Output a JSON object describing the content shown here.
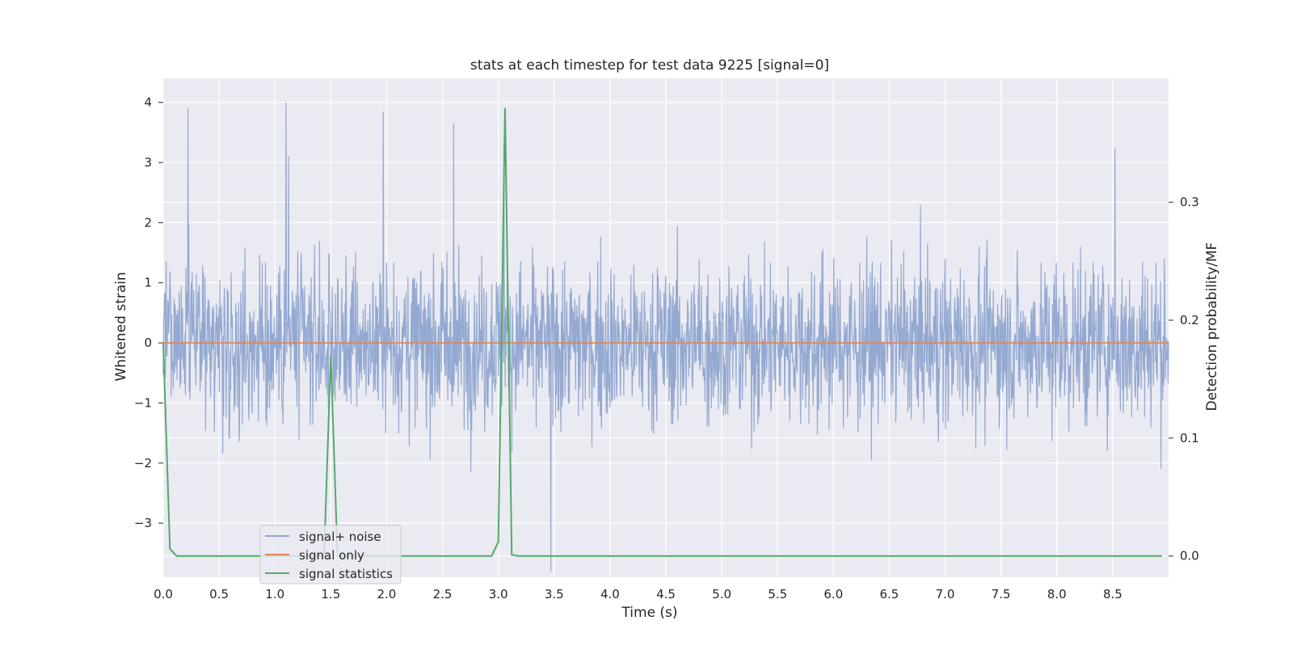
{
  "chart_data": {
    "type": "line",
    "title": "stats at each timestep for test data 9225 [signal=0]",
    "xlabel": "Time (s)",
    "ylabel": "Whitened strain",
    "y2label": "Detection probability/MF",
    "xlim": [
      0.0,
      9.0
    ],
    "ylim": [
      -3.9,
      4.4
    ],
    "y2lim": [
      -0.018,
      0.405
    ],
    "xticks": [
      "0.0",
      "0.5",
      "1.0",
      "1.5",
      "2.0",
      "2.5",
      "3.0",
      "3.5",
      "4.0",
      "4.5",
      "5.0",
      "5.5",
      "6.0",
      "6.5",
      "7.0",
      "7.5",
      "8.0",
      "8.5"
    ],
    "yticks": [
      -3,
      -2,
      -1,
      0,
      1,
      2,
      3,
      4
    ],
    "y2ticks": [
      "0.0",
      "0.1",
      "0.2",
      "0.3"
    ],
    "grid": true,
    "legend_position": "lower-left",
    "colors": {
      "background": "#eaeaf2",
      "grid": "#ffffff",
      "signal_noise": "#8fa5cf",
      "signal_only": "#dd8452",
      "signal_statistics": "#55a868"
    },
    "series": [
      {
        "name": "signal+ noise",
        "axis": "left",
        "description_peaks": {
          "x": [
            0.22,
            1.1,
            1.12,
            1.97,
            2.6,
            3.05,
            3.47,
            8.52
          ],
          "y": [
            3.9,
            4.0,
            3.1,
            3.85,
            3.65,
            3.3,
            -3.8,
            3.25
          ]
        }
      },
      {
        "name": "signal only",
        "axis": "left",
        "x": [
          0.0,
          9.0
        ],
        "y": [
          0.0,
          0.0
        ]
      },
      {
        "name": "signal statistics",
        "axis": "right",
        "x": [
          0.0,
          0.06,
          0.12,
          0.18,
          0.24,
          0.3,
          0.36,
          0.42,
          0.48,
          0.54,
          0.6,
          0.66,
          0.72,
          0.78,
          0.84,
          0.9,
          0.96,
          1.02,
          1.08,
          1.14,
          1.2,
          1.26,
          1.32,
          1.38,
          1.44,
          1.5,
          1.56,
          1.62,
          1.68,
          1.74,
          1.8,
          1.86,
          1.92,
          1.98,
          2.04,
          2.1,
          2.16,
          2.22,
          2.28,
          2.34,
          2.4,
          2.46,
          2.52,
          2.58,
          2.64,
          2.7,
          2.76,
          2.82,
          2.88,
          2.94,
          3.0,
          3.06,
          3.12,
          3.18,
          3.24,
          3.3,
          3.36,
          3.42,
          3.48,
          3.54,
          3.6,
          3.66,
          3.72,
          3.78,
          3.84,
          3.9,
          3.96,
          4.02,
          4.08,
          4.14,
          4.2,
          4.26,
          4.32,
          4.38,
          4.44,
          4.5,
          4.56,
          4.62,
          4.68,
          4.74,
          4.8,
          4.86,
          4.92,
          4.98,
          5.04,
          5.1,
          5.16,
          5.22,
          5.28,
          5.34,
          5.4,
          5.46,
          5.52,
          5.58,
          5.64,
          5.7,
          5.76,
          5.82,
          5.88,
          5.94,
          6.0,
          6.06,
          6.12,
          6.18,
          6.24,
          6.3,
          6.36,
          6.42,
          6.48,
          6.54,
          6.6,
          6.66,
          6.72,
          6.78,
          6.84,
          6.9,
          6.96,
          7.02,
          7.08,
          7.14,
          7.2,
          7.26,
          7.32,
          7.38,
          7.44,
          7.5,
          7.56,
          7.62,
          7.68,
          7.74,
          7.8,
          7.86,
          7.92,
          7.98,
          8.04,
          8.1,
          8.16,
          8.22,
          8.28,
          8.34,
          8.4,
          8.46,
          8.52,
          8.58,
          8.64,
          8.7,
          8.76,
          8.82,
          8.88,
          8.94
        ],
        "y": [
          0.18,
          0.006,
          0.0,
          0.0,
          0.0,
          0.0,
          0.0,
          0.0,
          0.0,
          0.0,
          0.0,
          0.0,
          0.0,
          0.0,
          0.0,
          0.0,
          0.0,
          0.0,
          0.0,
          0.0,
          0.0,
          0.0,
          0.0,
          0.0,
          0.0,
          0.17,
          0.0,
          0.0,
          0.0,
          0.0,
          0.0,
          0.0,
          0.0,
          0.0,
          0.0,
          0.0,
          0.0,
          0.0,
          0.0,
          0.0,
          0.0,
          0.0,
          0.0,
          0.0,
          0.0,
          0.0,
          0.0,
          0.0,
          0.0,
          0.0,
          0.012,
          0.38,
          0.001,
          0.0,
          0.0,
          0.0,
          0.0,
          0.0,
          0.0,
          0.0,
          0.0,
          0.0,
          0.0,
          0.0,
          0.0,
          0.0,
          0.0,
          0.0,
          0.0,
          0.0,
          0.0,
          0.0,
          0.0,
          0.0,
          0.0,
          0.0,
          0.0,
          0.0,
          0.0,
          0.0,
          0.0,
          0.0,
          0.0,
          0.0,
          0.0,
          0.0,
          0.0,
          0.0,
          0.0,
          0.0,
          0.0,
          0.0,
          0.0,
          0.0,
          0.0,
          0.0,
          0.0,
          0.0,
          0.0,
          0.0,
          0.0,
          0.0,
          0.0,
          0.0,
          0.0,
          0.0,
          0.0,
          0.0,
          0.0,
          0.0,
          0.0,
          0.0,
          0.0,
          0.0,
          0.0,
          0.0,
          0.0,
          0.0,
          0.0,
          0.0,
          0.0,
          0.0,
          0.0,
          0.0,
          0.0,
          0.0,
          0.0,
          0.0,
          0.0,
          0.0,
          0.0,
          0.0,
          0.0,
          0.0,
          0.0,
          0.0,
          0.0,
          0.0,
          0.0,
          0.0,
          0.0,
          0.0,
          0.0,
          0.0,
          0.0,
          0.0,
          0.0,
          0.0,
          0.0,
          0.0
        ]
      }
    ]
  }
}
